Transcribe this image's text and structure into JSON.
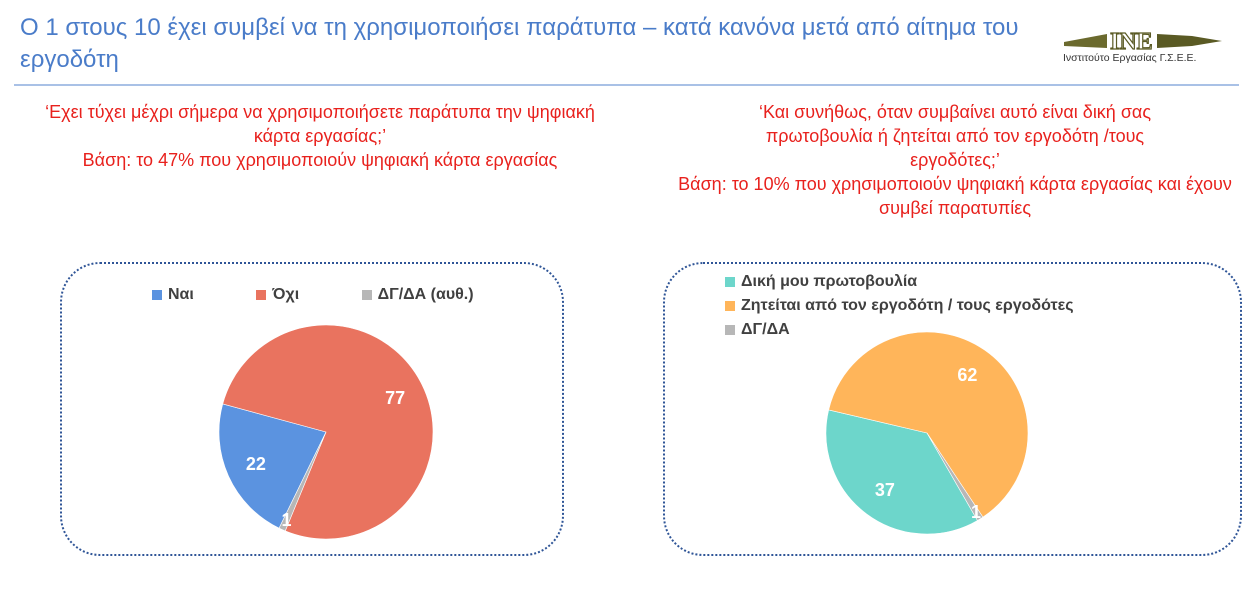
{
  "header": {
    "title": "Ο 1 στους 10 έχει συμβεί να τη χρησιμοποιήσει παράτυπα – κατά κανόνα μετά από αίτημα του εργοδότη",
    "logo_mark": "INE",
    "logo_text": "Ινστιτούτο Εργασίας Γ.Σ.Ε.Ε."
  },
  "left": {
    "question": "‘Εχει τύχει μέχρι σήμερα να χρησιμοποιήσετε παράτυπα την ψηφιακή κάρτα εργασίας;’",
    "base": "Βάση: το 47% που χρησιμοποιούν ψηφιακή κάρτα εργασίας"
  },
  "right": {
    "question": "‘Και συνήθως, όταν συμβαίνει αυτό είναι δική σας πρωτοβουλία ή ζητείται από τον εργοδότη /τους εργοδότες;’",
    "base": "Βάση: το 10% που χρησιμοποιούν ψηφιακή κάρτα εργασίας και έχουν συμβεί παρατυπίες"
  },
  "chart_data": [
    {
      "type": "pie",
      "legend_position": "top",
      "start_angle_deg": 206,
      "categories": [
        "Ναι",
        "Όχι",
        "ΔΓ/ΔΑ (αυθ.)"
      ],
      "values": [
        22,
        77,
        1
      ],
      "colors": [
        "#5b93e0",
        "#e9735f",
        "#b7b7b7"
      ]
    },
    {
      "type": "pie",
      "legend_position": "top-left",
      "start_angle_deg": 150,
      "categories": [
        "Δική μου πρωτοβουλία",
        "Ζητείται από τον εργοδότη / τους εργοδότες",
        "ΔΓ/ΔΑ"
      ],
      "values": [
        37,
        62,
        1
      ],
      "colors": [
        "#6dd6cb",
        "#ffb55a",
        "#b7b7b7"
      ]
    }
  ]
}
